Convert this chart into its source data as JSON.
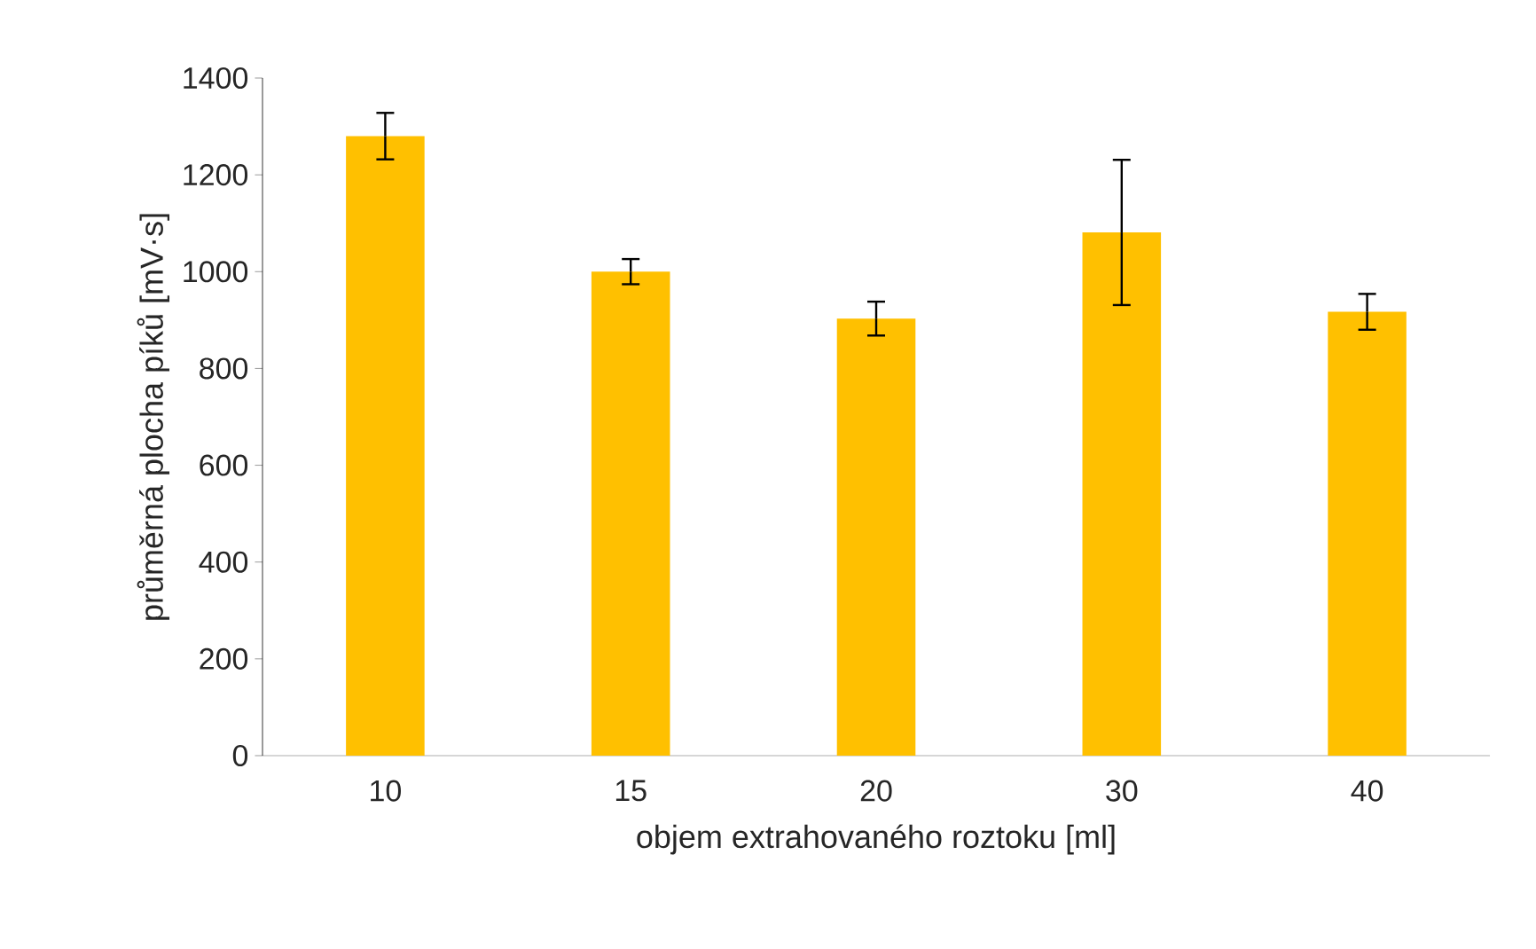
{
  "chart_data": {
    "type": "bar",
    "categories": [
      "10",
      "15",
      "20",
      "30",
      "40"
    ],
    "values": [
      1280,
      1000,
      903,
      1081,
      917
    ],
    "errors": [
      48,
      26,
      35,
      150,
      37
    ],
    "color": "#ffc000",
    "xlabel": "objem extrahovaného roztoku [ml]",
    "ylabel": "průměrná plocha píků [mV·s]",
    "ylim": [
      0,
      1400
    ],
    "yticks": [
      0,
      200,
      400,
      600,
      800,
      1000,
      1200,
      1400
    ],
    "grid": false
  }
}
